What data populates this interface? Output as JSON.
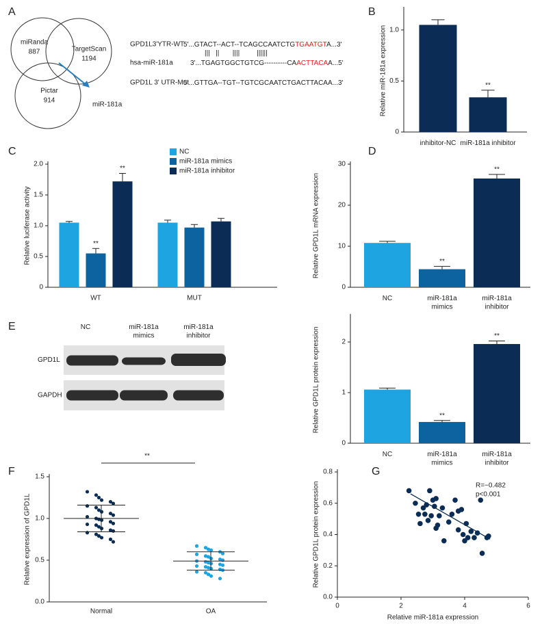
{
  "venn": {
    "panel": "A",
    "sets": [
      {
        "name": "miRanda",
        "count": 887
      },
      {
        "name": "TargetScan",
        "count": 1194
      },
      {
        "name": "Pictar",
        "count": 914
      }
    ],
    "result": "miR-181a",
    "arrow_color": "#2a7fc0"
  },
  "sequences": {
    "highlight_color": "#e0211d",
    "rows": [
      {
        "label": "GPD1L3'YTR-WT",
        "parts": [
          {
            "text": "5'...GTACT--ACT--TCAGCCAATCTG"
          },
          {
            "text": "TGAATGT",
            "highlight": true
          },
          {
            "text": "A...3'"
          }
        ]
      },
      {
        "label": "hsa-miR-181a",
        "parts": [
          {
            "text": "3'...TGAGTGGCTGTCG----------CA"
          },
          {
            "text": "ACTTACA",
            "highlight": true
          },
          {
            "text": "A...5'"
          }
        ]
      },
      {
        "label": "GPD1L 3' UTR-Mut",
        "parts": [
          {
            "text": "5'...GTTGA--TGT--TGTCGCAATCTGACTTACAA...3'"
          }
        ]
      }
    ],
    "pairing": "|||   ||       ||||         ||||||"
  },
  "blot": {
    "panel": "E",
    "columns": [
      [
        "NC"
      ],
      [
        "miR-181a",
        "mimics"
      ],
      [
        "miR-181a",
        "inhibitor"
      ]
    ],
    "rows": [
      "GPD1L",
      "GAPDH"
    ]
  },
  "chart_data": [
    {
      "type": "bar",
      "panel": "B",
      "ylabel": "Relative miR-181a expression",
      "categories": [
        [
          "inhibitor-NC"
        ],
        [
          "miR-181a inhibitor"
        ]
      ],
      "values": [
        1.05,
        0.34
      ],
      "errors": [
        0.05,
        0.07
      ],
      "significance": [
        null,
        "**"
      ],
      "colors": [
        "#0b2d55",
        "#0b2d55"
      ],
      "ylim": [
        0,
        1.2
      ],
      "yticks": [
        0,
        0.5,
        {
          "value": 1,
          "label": "1.0"
        }
      ]
    },
    {
      "type": "grouped_bar",
      "panel": "C",
      "ylabel": "Relative luciferase activity",
      "categories": [
        "WT",
        "MUT"
      ],
      "series": [
        {
          "name": "NC",
          "color": "#1ea4e0",
          "values": [
            1.05,
            1.05
          ],
          "errors": [
            0.02,
            0.04
          ],
          "significance": [
            null,
            null
          ]
        },
        {
          "name": "miR-181a mimics",
          "color": "#0d62a0",
          "values": [
            0.55,
            0.97
          ],
          "errors": [
            0.08,
            0.05
          ],
          "significance": [
            "**",
            null
          ]
        },
        {
          "name": "miR-181a inhibitor",
          "color": "#0b2d55",
          "values": [
            1.72,
            1.07
          ],
          "errors": [
            0.13,
            0.05
          ],
          "significance": [
            "**",
            null
          ]
        }
      ],
      "ylim": [
        0,
        2
      ],
      "yticks": [
        0,
        0.5,
        {
          "value": 1,
          "label": "1.0"
        },
        1.5,
        {
          "value": 2,
          "label": "2.0"
        }
      ]
    },
    {
      "type": "bar",
      "panel": "D",
      "ylabel": "Relative GPD1L mRNA expression",
      "categories": [
        [
          "NC"
        ],
        [
          "miR-181a",
          "mimics"
        ],
        [
          "miR-181a",
          "inhibitor"
        ]
      ],
      "values": [
        10.8,
        4.4,
        26.5
      ],
      "errors": [
        0.4,
        0.7,
        1.0
      ],
      "significance": [
        null,
        "**",
        "**"
      ],
      "colors": [
        "#1ea4e0",
        "#0d62a0",
        "#0b2d55"
      ],
      "ylim": [
        0,
        30
      ],
      "yticks": [
        0,
        10,
        20,
        30
      ]
    },
    {
      "type": "bar",
      "ylabel": "Relative GPD1L protein expression",
      "categories": [
        [
          "NC"
        ],
        [
          "miR-181a",
          "mimics"
        ],
        [
          "miR-181a",
          "inhibitor"
        ]
      ],
      "values": [
        1.06,
        0.42,
        1.96
      ],
      "errors": [
        0.03,
        0.03,
        0.06
      ],
      "significance": [
        null,
        "**",
        "**"
      ],
      "colors": [
        "#1ea4e0",
        "#0d62a0",
        "#0b2d55"
      ],
      "ylim": [
        0,
        2.5
      ],
      "yticks": [
        0,
        1,
        2
      ]
    },
    {
      "type": "dotplot",
      "panel": "F",
      "ylabel": "Relative expression of GPD1L",
      "annotation": "**",
      "categories": [
        "Normal",
        "OA"
      ],
      "groups": [
        {
          "color": "#0b2d55",
          "mean": 1.0,
          "sd": 0.16,
          "values": [
            1.32,
            1.28,
            1.25,
            1.22,
            1.2,
            1.18,
            1.15,
            1.13,
            1.1,
            1.08,
            1.06,
            1.04,
            1.02,
            1.0,
            0.99,
            0.98,
            0.96,
            0.94,
            0.93,
            0.92,
            0.9,
            0.88,
            0.86,
            0.85,
            0.83,
            0.81,
            0.79,
            0.77,
            0.75,
            0.72
          ]
        },
        {
          "color": "#1ea4e0",
          "mean": 0.49,
          "sd": 0.11,
          "values": [
            0.67,
            0.65,
            0.63,
            0.62,
            0.6,
            0.58,
            0.57,
            0.55,
            0.54,
            0.52,
            0.51,
            0.5,
            0.49,
            0.48,
            0.47,
            0.46,
            0.45,
            0.44,
            0.43,
            0.42,
            0.41,
            0.4,
            0.39,
            0.38,
            0.36,
            0.35,
            0.33,
            0.31,
            0.28
          ]
        }
      ],
      "ylim": [
        0,
        1.5
      ],
      "yticks": [
        {
          "value": 0,
          "label": "0.0"
        },
        0.5,
        {
          "value": 1,
          "label": "1.0"
        },
        1.5
      ]
    },
    {
      "type": "scatter",
      "panel": "G",
      "xlabel": "Relative miR-181a expression",
      "ylabel": "Relative GPD1L protein expression",
      "annotations": [
        "R=−0.482",
        "p<0.001"
      ],
      "color": "#0b2d55",
      "x": [
        2.25,
        2.45,
        2.55,
        2.6,
        2.7,
        2.75,
        2.8,
        2.85,
        2.9,
        2.95,
        3.0,
        3.05,
        3.1,
        3.1,
        3.15,
        3.2,
        3.3,
        3.35,
        3.5,
        3.6,
        3.7,
        3.8,
        3.8,
        3.9,
        3.95,
        4.0,
        4.05,
        4.1,
        4.2,
        4.3,
        4.4,
        4.5,
        4.55,
        4.7,
        4.75
      ],
      "values": [
        0.68,
        0.6,
        0.53,
        0.47,
        0.57,
        0.53,
        0.59,
        0.49,
        0.68,
        0.52,
        0.62,
        0.58,
        0.63,
        0.44,
        0.46,
        0.52,
        0.57,
        0.36,
        0.48,
        0.53,
        0.62,
        0.55,
        0.43,
        0.56,
        0.4,
        0.36,
        0.47,
        0.38,
        0.42,
        0.38,
        0.41,
        0.62,
        0.28,
        0.38,
        0.39
      ],
      "fit": {
        "x": [
          2.3,
          4.8
        ],
        "values": [
          0.66,
          0.37
        ]
      },
      "xlim": [
        0,
        6
      ],
      "xticks": [
        0,
        2,
        4,
        6
      ],
      "ylim": [
        0,
        0.8
      ],
      "yticks": [
        {
          "value": 0,
          "label": "0.0"
        },
        0.2,
        0.4,
        0.6,
        0.8
      ]
    }
  ]
}
